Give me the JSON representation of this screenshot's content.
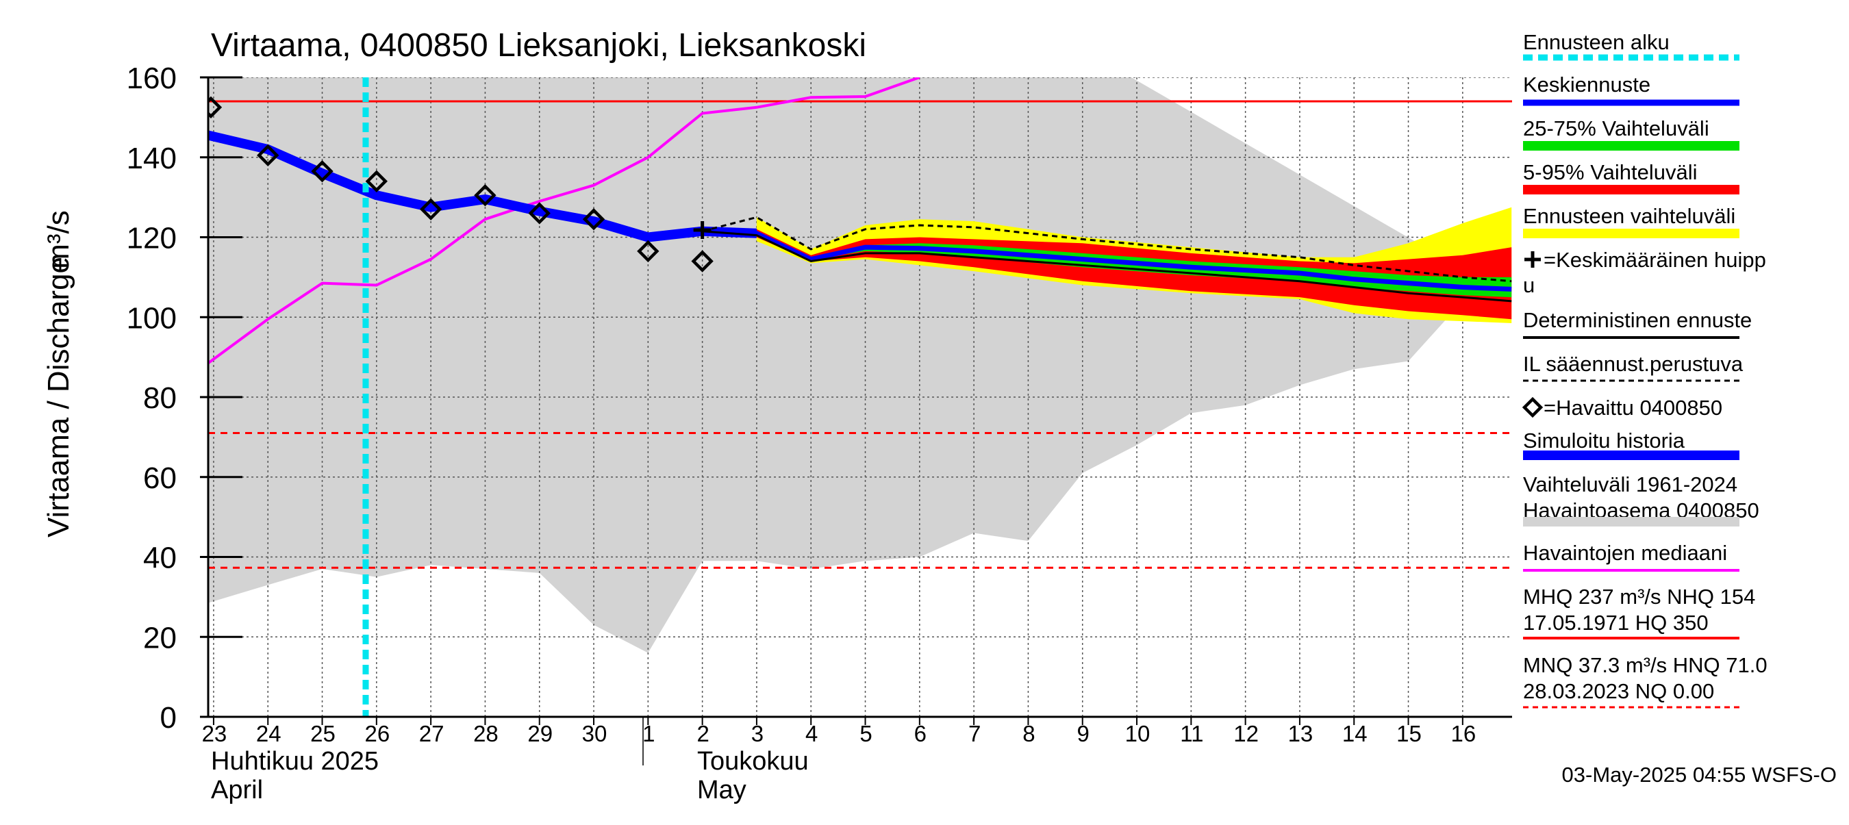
{
  "chart_data": {
    "type": "line",
    "title": "Virtaama, 0400850 Lieksanjoki, Lieksankoski",
    "ylabel": "Virtaama / Discharge",
    "yunit": "m³/s",
    "ylim": [
      0,
      160
    ],
    "yticks": [
      "0",
      "20",
      "40",
      "60",
      "80",
      "100",
      "120",
      "140",
      "160"
    ],
    "x_tick_labels": [
      "23",
      "24",
      "25",
      "26",
      "27",
      "28",
      "29",
      "30",
      "1",
      "2",
      "3",
      "4",
      "5",
      "6",
      "7",
      "8",
      "9",
      "10",
      "11",
      "12",
      "13",
      "14",
      "15",
      "16"
    ],
    "x_months": {
      "april_fi": "Huhtikuu  2025",
      "april_en": "April",
      "may_fi": "Toukokuu",
      "may_en": "May"
    },
    "forecast_start_day": 2.8,
    "grid": true,
    "legend_position": "right",
    "reference_lines": [
      {
        "name": "NHQ",
        "value": 154,
        "style": "solid",
        "color": "#ff0000"
      },
      {
        "name": "HNQ",
        "value": 71.0,
        "style": "dashed",
        "color": "#ff0000"
      },
      {
        "name": "MNQ",
        "value": 37.3,
        "style": "dashed",
        "color": "#ff0000"
      },
      {
        "name": "NQ",
        "value": 0.0,
        "style": "dashed",
        "color": "#ff0000"
      }
    ],
    "series": {
      "historical_range_upper": [
        [
          -0.1,
          160
        ],
        [
          16.9,
          160
        ]
      ],
      "historical_range_lower": [
        [
          -0.1,
          28.5
        ],
        [
          1,
          33
        ],
        [
          2,
          37
        ],
        [
          3,
          35
        ],
        [
          4,
          38
        ],
        [
          5,
          37
        ],
        [
          6,
          36
        ],
        [
          7,
          23
        ],
        [
          8,
          16
        ],
        [
          9,
          39
        ],
        [
          10,
          39
        ],
        [
          11,
          37
        ],
        [
          12,
          39
        ],
        [
          13,
          40
        ],
        [
          14,
          46
        ],
        [
          15,
          44
        ],
        [
          16,
          61
        ],
        [
          17,
          68
        ],
        [
          18,
          76
        ],
        [
          19,
          78
        ],
        [
          20,
          83
        ],
        [
          21,
          87
        ],
        [
          22,
          89
        ],
        [
          23,
          104
        ],
        [
          23.9,
          105
        ]
      ],
      "observed_median": [
        [
          -0.1,
          88.5
        ],
        [
          1,
          99.5
        ],
        [
          2,
          108.5
        ],
        [
          3,
          108
        ],
        [
          4,
          114.5
        ],
        [
          5,
          124.5
        ],
        [
          6,
          129
        ],
        [
          7,
          133
        ],
        [
          8,
          140
        ],
        [
          9,
          151
        ],
        [
          10,
          152.5
        ],
        [
          11,
          155
        ],
        [
          12,
          155.2
        ],
        [
          13,
          160
        ]
      ],
      "simulated_history": [
        [
          -0.1,
          145.5
        ],
        [
          1,
          142
        ],
        [
          2,
          136
        ],
        [
          3,
          130.5
        ],
        [
          4,
          127.5
        ],
        [
          5,
          129.5
        ],
        [
          6,
          126.5
        ],
        [
          7,
          124
        ],
        [
          8,
          120
        ],
        [
          9,
          121.5
        ],
        [
          10,
          121
        ]
      ],
      "observed": [
        [
          -0.05,
          152.5
        ],
        [
          1,
          140.5
        ],
        [
          2,
          136.5
        ],
        [
          3,
          134
        ],
        [
          4,
          127
        ],
        [
          5,
          130.5
        ],
        [
          6,
          126
        ],
        [
          7,
          124.5
        ],
        [
          8,
          116.5
        ],
        [
          9,
          114
        ]
      ],
      "mean_peak": [
        [
          9,
          121.8
        ]
      ],
      "forecast_envelope_upper": [
        [
          10,
          125
        ],
        [
          11,
          117
        ],
        [
          12,
          123
        ],
        [
          13,
          124.5
        ],
        [
          14,
          124
        ],
        [
          16,
          120
        ],
        [
          18,
          117.5
        ],
        [
          20,
          115
        ],
        [
          21,
          115
        ],
        [
          22,
          118.5
        ],
        [
          23,
          123.5
        ],
        [
          23.9,
          127.5
        ]
      ],
      "forecast_envelope_lower": [
        [
          10,
          119
        ],
        [
          11,
          113.5
        ],
        [
          12,
          114.5
        ],
        [
          13,
          113
        ],
        [
          14,
          111.5
        ],
        [
          16,
          108
        ],
        [
          18,
          106
        ],
        [
          20,
          104.5
        ],
        [
          21,
          101
        ],
        [
          22,
          99.5
        ],
        [
          23,
          99
        ],
        [
          23.9,
          98.5
        ]
      ],
      "p5_95_upper": [
        [
          10,
          122
        ],
        [
          11,
          115.5
        ],
        [
          12,
          119.5
        ],
        [
          13,
          120
        ],
        [
          14,
          119.5
        ],
        [
          16,
          118.5
        ],
        [
          18,
          116
        ],
        [
          20,
          114
        ],
        [
          21,
          113.5
        ],
        [
          22,
          114.5
        ],
        [
          23,
          115.5
        ],
        [
          23.9,
          117.5
        ]
      ],
      "p5_95_lower": [
        [
          10,
          120
        ],
        [
          11,
          114
        ],
        [
          12,
          115
        ],
        [
          13,
          114
        ],
        [
          14,
          112.5
        ],
        [
          16,
          109
        ],
        [
          18,
          106.5
        ],
        [
          20,
          105
        ],
        [
          21,
          103
        ],
        [
          22,
          101.5
        ],
        [
          23,
          100.5
        ],
        [
          23.9,
          99.5
        ]
      ],
      "p25_75_upper": [
        [
          10,
          121.5
        ],
        [
          11,
          115
        ],
        [
          12,
          118
        ],
        [
          13,
          118.5
        ],
        [
          14,
          118
        ],
        [
          16,
          116
        ],
        [
          18,
          114
        ],
        [
          20,
          112.5
        ],
        [
          21,
          111.5
        ],
        [
          22,
          110.5
        ],
        [
          23,
          110
        ],
        [
          23.9,
          110
        ]
      ],
      "p25_75_lower": [
        [
          10,
          120.5
        ],
        [
          11,
          114.5
        ],
        [
          12,
          116.5
        ],
        [
          13,
          116
        ],
        [
          14,
          115
        ],
        [
          16,
          112.5
        ],
        [
          18,
          110.5
        ],
        [
          20,
          109
        ],
        [
          21,
          107.5
        ],
        [
          22,
          106.5
        ],
        [
          23,
          105.5
        ],
        [
          23.9,
          105
        ]
      ],
      "mean_forecast": [
        [
          9,
          121.5
        ],
        [
          10,
          121
        ],
        [
          11,
          114.5
        ],
        [
          12,
          117.5
        ],
        [
          13,
          117.2
        ],
        [
          14,
          116.5
        ],
        [
          16,
          114.5
        ],
        [
          18,
          112.5
        ],
        [
          20,
          111
        ],
        [
          21,
          109.5
        ],
        [
          22,
          108.5
        ],
        [
          23,
          107.5
        ],
        [
          23.9,
          107
        ]
      ],
      "deterministic_forecast": [
        [
          9,
          121.5
        ],
        [
          10,
          120.5
        ],
        [
          11,
          114
        ],
        [
          12,
          116
        ],
        [
          13,
          116
        ],
        [
          14,
          115
        ],
        [
          16,
          113
        ],
        [
          18,
          111
        ],
        [
          20,
          109
        ],
        [
          21,
          107.5
        ],
        [
          22,
          106
        ],
        [
          23,
          105
        ],
        [
          23.9,
          104
        ]
      ],
      "il_forecast": [
        [
          9,
          121.5
        ],
        [
          10,
          125
        ],
        [
          11,
          117
        ],
        [
          12,
          122
        ],
        [
          13,
          123
        ],
        [
          14,
          122.5
        ],
        [
          16,
          119.5
        ],
        [
          18,
          117
        ],
        [
          20,
          115
        ],
        [
          21,
          113
        ],
        [
          22,
          111.5
        ],
        [
          23,
          110
        ],
        [
          23.9,
          109
        ]
      ]
    },
    "legend": [
      {
        "label": "Ennusteen alku",
        "color": "#00e5ee",
        "style": "dashed"
      },
      {
        "label": "Keskiennuste",
        "color": "#0000ff",
        "style": "solid"
      },
      {
        "label": "25-75% Vaihteluväli",
        "color": "#00e000",
        "style": "band"
      },
      {
        "label": "5-95% Vaihteluväli",
        "color": "#ff0000",
        "style": "band"
      },
      {
        "label": "Ennusteen vaihteluväli",
        "color": "#ffff00",
        "style": "band"
      },
      {
        "label1": "=Keskimääräinen huipp",
        "label2": "u",
        "color": "#000000",
        "style": "plus"
      },
      {
        "label": "Deterministinen ennuste",
        "color": "#000000",
        "style": "solid"
      },
      {
        "label": "IL sääennust.perustuva",
        "color": "#000000",
        "style": "dashed"
      },
      {
        "label": "=Havaittu 0400850",
        "color": "#000000",
        "style": "diamond"
      },
      {
        "label": "Simuloitu historia",
        "color": "#0000ff",
        "style": "thick"
      },
      {
        "label1": "Vaihteluväli 1961-2024",
        "label2": " Havaintoasema 0400850",
        "color": "#d3d3d3",
        "style": "thick"
      },
      {
        "label": "Havaintojen mediaani",
        "color": "#ff00ff",
        "style": "solid"
      },
      {
        "label1": "MHQ  237 m³/s NHQ  154",
        "label2": "17.05.1971 HQ  350",
        "color": "#ff0000",
        "style": "solid"
      },
      {
        "label1": "MNQ 37.3 m³/s HNQ 71.0",
        "label2": "28.03.2023 NQ 0.00",
        "color": "#ff0000",
        "style": "dashed"
      }
    ],
    "footer": "03-May-2025 04:55 WSFS-O"
  }
}
